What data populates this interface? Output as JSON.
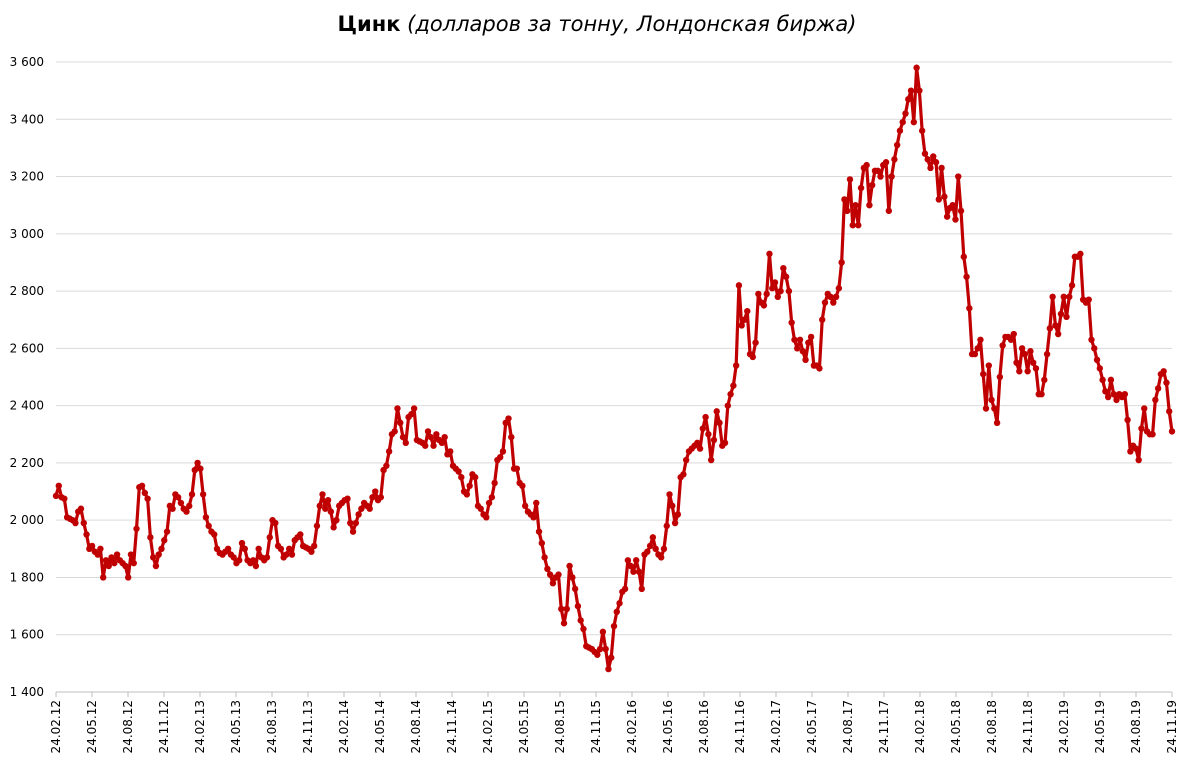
{
  "chart_data": {
    "type": "line",
    "title": "Цинк",
    "subtitle": "(долларов за тонну, Лондонская биржа)",
    "xlabel": "",
    "ylabel": "",
    "ylim": [
      1400,
      3600
    ],
    "yticks": [
      1400,
      1600,
      1800,
      2000,
      2200,
      2400,
      2600,
      2800,
      3000,
      3200,
      3400,
      3600
    ],
    "ytick_labels": [
      "1 400",
      "1 600",
      "1 800",
      "2 000",
      "2 200",
      "2 400",
      "2 600",
      "2 800",
      "3 000",
      "3 200",
      "3 400",
      "3 600"
    ],
    "xtick_labels": [
      "24.02.12",
      "24.05.12",
      "24.08.12",
      "24.11.12",
      "24.02.13",
      "24.05.13",
      "24.08.13",
      "24.11.13",
      "24.02.14",
      "24.05.14",
      "24.08.14",
      "24.11.14",
      "24.02.15",
      "24.05.15",
      "24.08.15",
      "24.11.15",
      "24.02.16",
      "24.05.16",
      "24.08.16",
      "24.11.16",
      "24.02.17",
      "24.05.17",
      "24.08.17",
      "24.11.17",
      "24.02.18",
      "24.05.18",
      "24.08.18",
      "24.11.18",
      "24.02.19",
      "24.05.19",
      "24.08.19",
      "24.11.19"
    ],
    "grid": true,
    "legend": "none",
    "series": [
      {
        "color": "#c00000",
        "values": [
          2085,
          2120,
          2080,
          2075,
          2010,
          2005,
          2000,
          1990,
          2030,
          2040,
          1990,
          1950,
          1900,
          1910,
          1890,
          1880,
          1900,
          1800,
          1860,
          1840,
          1870,
          1850,
          1880,
          1860,
          1850,
          1840,
          1800,
          1880,
          1850,
          1970,
          2115,
          2120,
          2095,
          2075,
          1940,
          1870,
          1840,
          1880,
          1900,
          1930,
          1960,
          2050,
          2040,
          2090,
          2080,
          2060,
          2040,
          2030,
          2050,
          2090,
          2175,
          2200,
          2180,
          2090,
          2010,
          1980,
          1960,
          1950,
          1900,
          1885,
          1880,
          1890,
          1900,
          1880,
          1870,
          1850,
          1860,
          1920,
          1900,
          1860,
          1850,
          1860,
          1840,
          1900,
          1870,
          1860,
          1870,
          1940,
          2000,
          1990,
          1910,
          1900,
          1870,
          1880,
          1900,
          1880,
          1930,
          1940,
          1950,
          1910,
          1905,
          1900,
          1890,
          1910,
          1980,
          2050,
          2090,
          2040,
          2070,
          2030,
          1975,
          2000,
          2050,
          2060,
          2070,
          2075,
          1990,
          1960,
          1990,
          2020,
          2040,
          2060,
          2050,
          2040,
          2080,
          2100,
          2070,
          2080,
          2175,
          2190,
          2240,
          2300,
          2310,
          2390,
          2340,
          2290,
          2270,
          2360,
          2370,
          2390,
          2280,
          2275,
          2270,
          2260,
          2310,
          2290,
          2260,
          2300,
          2280,
          2270,
          2290,
          2230,
          2240,
          2190,
          2180,
          2170,
          2150,
          2100,
          2090,
          2120,
          2160,
          2150,
          2050,
          2040,
          2020,
          2010,
          2060,
          2080,
          2130,
          2210,
          2220,
          2240,
          2340,
          2355,
          2290,
          2180,
          2180,
          2130,
          2120,
          2050,
          2030,
          2020,
          2010,
          2060,
          1960,
          1920,
          1870,
          1830,
          1810,
          1780,
          1800,
          1810,
          1690,
          1640,
          1690,
          1840,
          1800,
          1760,
          1700,
          1650,
          1620,
          1560,
          1555,
          1550,
          1540,
          1530,
          1550,
          1610,
          1550,
          1480,
          1520,
          1630,
          1680,
          1710,
          1750,
          1760,
          1860,
          1840,
          1820,
          1860,
          1820,
          1760,
          1880,
          1890,
          1910,
          1940,
          1900,
          1880,
          1870,
          1900,
          1980,
          2090,
          2050,
          1990,
          2020,
          2150,
          2160,
          2210,
          2240,
          2250,
          2260,
          2270,
          2250,
          2320,
          2360,
          2300,
          2210,
          2280,
          2380,
          2340,
          2260,
          2270,
          2400,
          2440,
          2470,
          2540,
          2820,
          2680,
          2700,
          2730,
          2580,
          2570,
          2620,
          2790,
          2760,
          2750,
          2790,
          2930,
          2810,
          2830,
          2780,
          2800,
          2880,
          2850,
          2800,
          2690,
          2630,
          2600,
          2630,
          2590,
          2560,
          2620,
          2640,
          2540,
          2540,
          2530,
          2700,
          2760,
          2790,
          2780,
          2760,
          2780,
          2810,
          2900,
          3120,
          3080,
          3190,
          3030,
          3100,
          3030,
          3160,
          3230,
          3240,
          3100,
          3170,
          3220,
          3220,
          3200,
          3240,
          3250,
          3080,
          3200,
          3260,
          3310,
          3360,
          3390,
          3420,
          3470,
          3500,
          3390,
          3580,
          3500,
          3360,
          3280,
          3260,
          3230,
          3270,
          3250,
          3120,
          3230,
          3130,
          3060,
          3090,
          3100,
          3050,
          3200,
          3080,
          2920,
          2850,
          2740,
          2580,
          2580,
          2600,
          2630,
          2510,
          2390,
          2540,
          2420,
          2390,
          2340,
          2500,
          2610,
          2640,
          2640,
          2630,
          2650,
          2550,
          2520,
          2600,
          2580,
          2520,
          2590,
          2550,
          2530,
          2440,
          2440,
          2490,
          2580,
          2670,
          2780,
          2680,
          2650,
          2720,
          2780,
          2710,
          2780,
          2820,
          2920,
          2920,
          2930,
          2770,
          2760,
          2770,
          2630,
          2600,
          2560,
          2530,
          2490,
          2450,
          2430,
          2490,
          2440,
          2420,
          2440,
          2430,
          2440,
          2350,
          2240,
          2260,
          2250,
          2210,
          2320,
          2390,
          2310,
          2300,
          2300,
          2420,
          2460,
          2510,
          2520,
          2480,
          2380,
          2310
        ]
      }
    ]
  }
}
